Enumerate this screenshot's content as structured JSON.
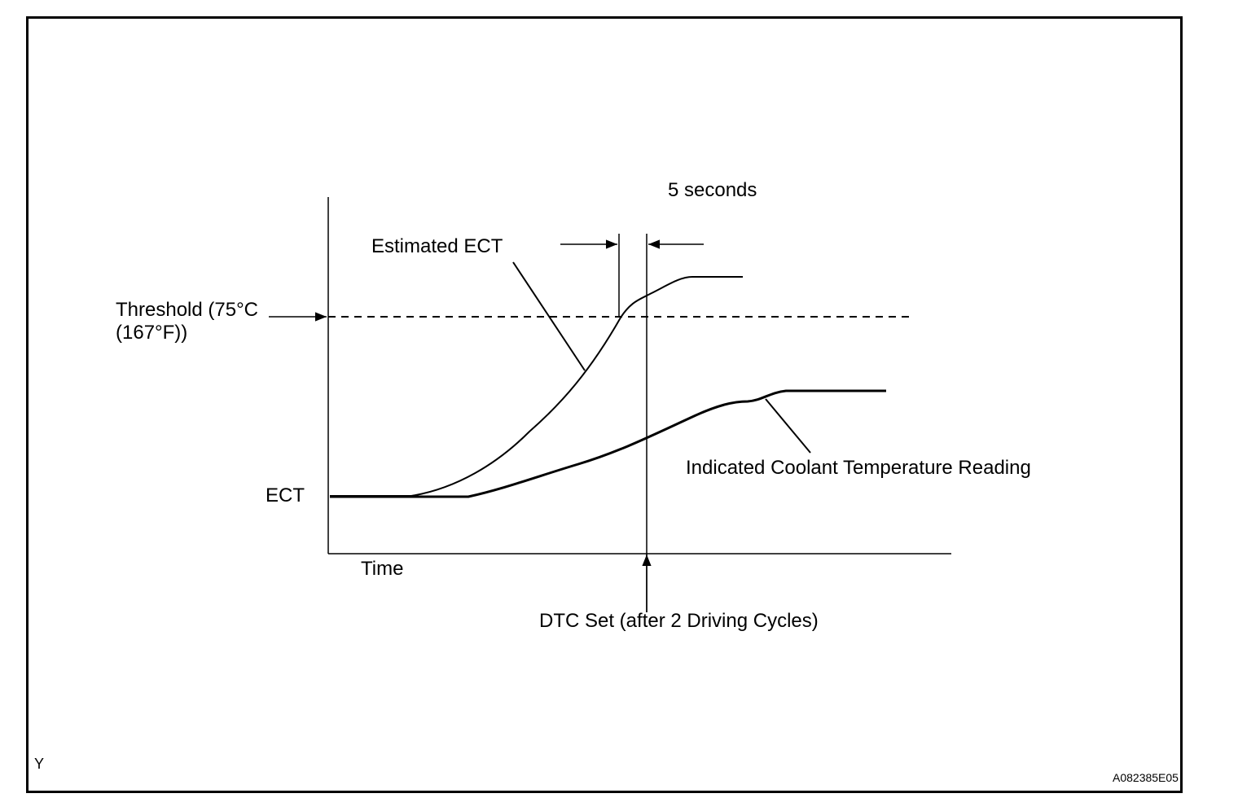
{
  "labels": {
    "five_seconds": "5 seconds",
    "estimated_ect": "Estimated ECT",
    "threshold_line1": "Threshold  (75°C",
    "threshold_line2": "(167°F))",
    "ect": "ECT",
    "time": "Time",
    "indicated_reading": "Indicated Coolant Temperature Reading",
    "dtc_set": "DTC Set (after 2 Driving Cycles)",
    "corner_y": "Y",
    "figure_id": "A082385E05"
  }
}
